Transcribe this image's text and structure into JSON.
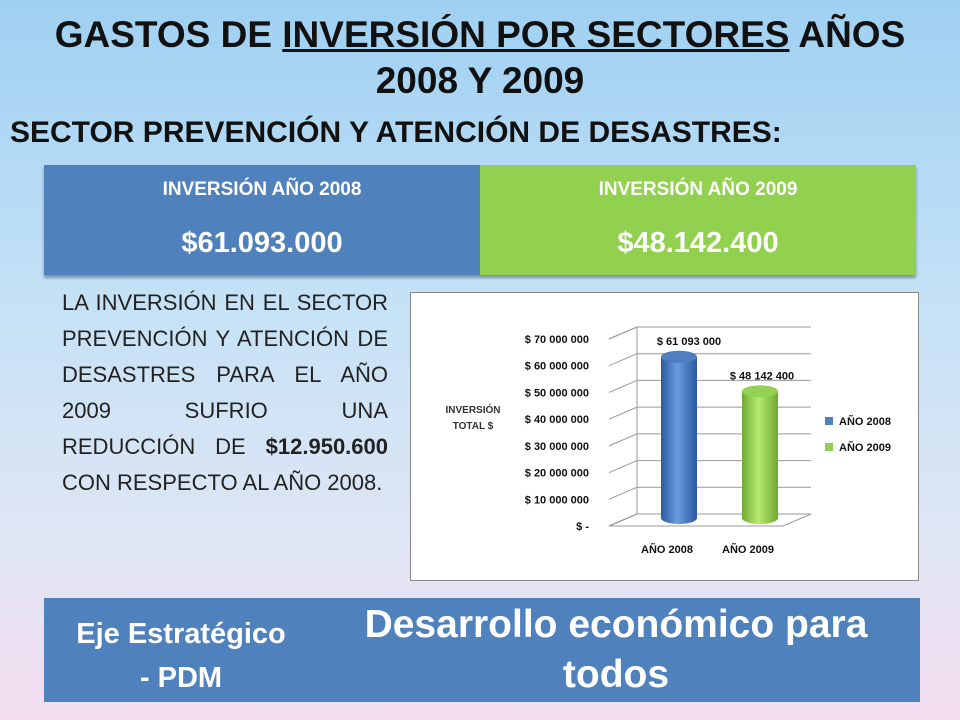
{
  "title": {
    "part1": "GASTOS DE ",
    "underlined": "INVERSIÓN POR SECTORES",
    "part2": " AÑOS",
    "line2": "2008 Y 2009"
  },
  "subtitle": "SECTOR PREVENCIÓN Y ATENCIÓN DE DESASTRES:",
  "investment": {
    "col2008_label": "INVERSIÓN AÑO 2008",
    "col2008_value": "$61.093.000",
    "col2009_label": "INVERSIÓN AÑO 2009",
    "col2009_value": "$48.142.400"
  },
  "paragraph": {
    "text_before": "LA INVERSIÓN EN EL SECTOR PREVENCIÓN Y ATENCIÓN DE DESASTRES PARA EL AÑO 2009 SUFRIO UNA REDUCCIÓN DE ",
    "bold": "$12.950.600",
    "text_after": " CON RESPECTO AL AÑO 2008."
  },
  "colors": {
    "blue": "#4f81bd",
    "green": "#92d050"
  },
  "chart_data": {
    "type": "bar",
    "categories": [
      "AÑO 2008",
      "AÑO 2009"
    ],
    "series": [
      {
        "name": "AÑO 2008",
        "values": [
          61093000,
          null
        ],
        "color": "#4f81bd"
      },
      {
        "name": "AÑO 2009",
        "values": [
          null,
          48142400
        ],
        "color": "#92d050"
      }
    ],
    "data_labels": [
      "$ 61 093 000",
      "$ 48 142 400"
    ],
    "ylabel": "INVERSIÓN TOTAL $",
    "ylim": [
      0,
      70000000
    ],
    "ytick_values": [
      0,
      10000000,
      20000000,
      30000000,
      40000000,
      50000000,
      60000000,
      70000000
    ],
    "ytick_labels": [
      "$ -",
      "$ 10 000 000",
      "$ 20 000 000",
      "$ 30 000 000",
      "$ 40 000 000",
      "$ 50 000 000",
      "$ 60 000 000",
      "$ 70 000 000"
    ],
    "grid": true,
    "legend": "right"
  },
  "footer": {
    "eje_line1": "Eje Estratégico",
    "eje_line2": "- PDM",
    "desarrollo": "Desarrollo económico para todos"
  }
}
